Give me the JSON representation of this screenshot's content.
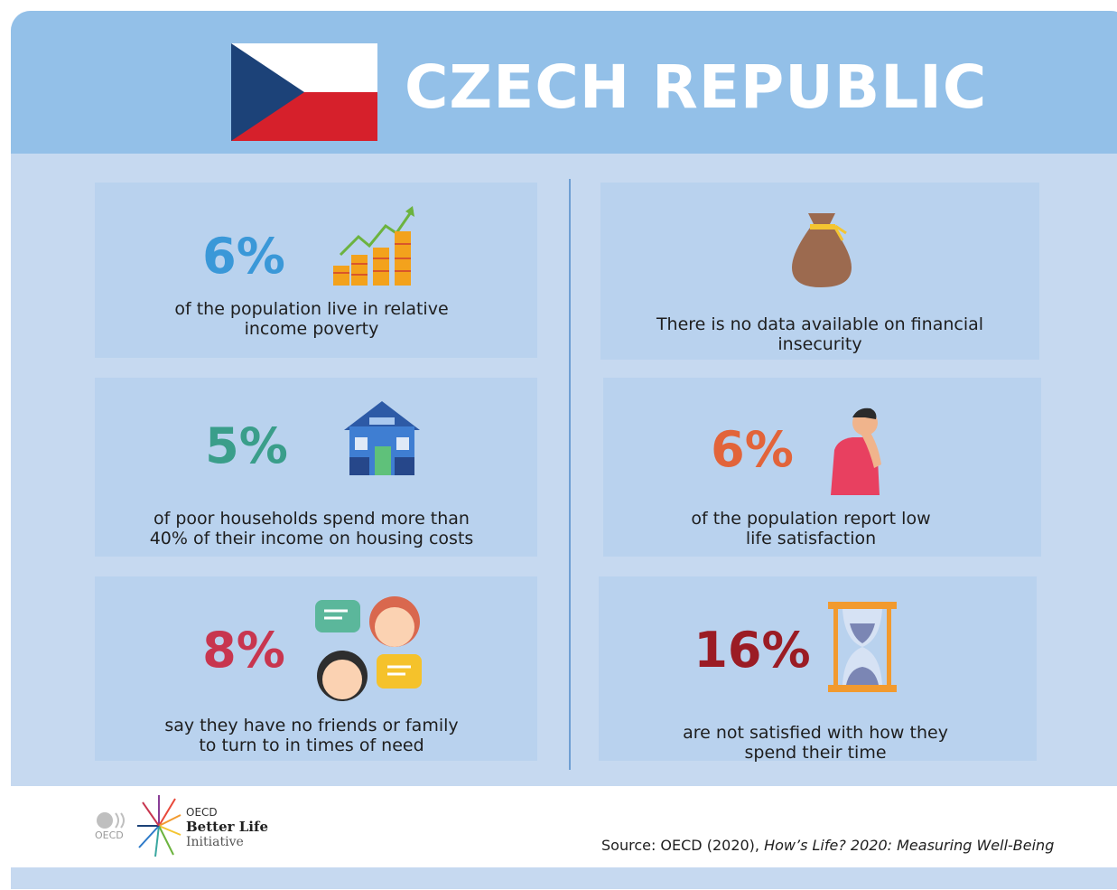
{
  "header": {
    "title": "CZECH REPUBLIC"
  },
  "cards": [
    {
      "stat": "6%",
      "text": "of the population live in relative income poverty"
    },
    {
      "text": "There is no data available on financial insecurity"
    },
    {
      "stat": "5%",
      "text": "of poor households spend more than 40% of their income on housing costs"
    },
    {
      "stat": "6%",
      "text": "of the population report low life satisfaction"
    },
    {
      "stat": "8%",
      "text": "say they have no friends or family to turn to in times of need"
    },
    {
      "stat": "16%",
      "text": "are not satisfied with how they spend their time"
    }
  ],
  "footer": {
    "logo": {
      "mark": "OECD",
      "line1": "OECD",
      "line2": "Better Life",
      "line3": "Initiative"
    },
    "source": {
      "prefix": "Source: OECD (2020), ",
      "title": "How’s Life? 2020: Measuring Well-Being"
    }
  }
}
